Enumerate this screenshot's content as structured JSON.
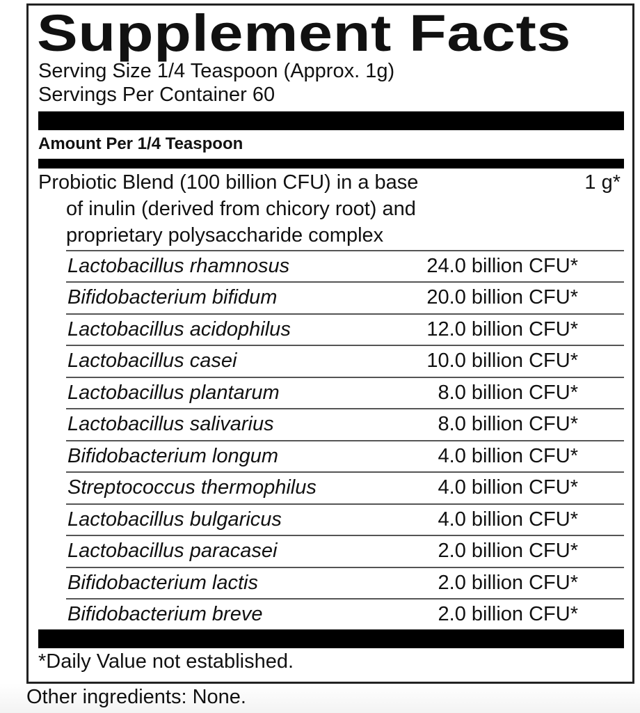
{
  "label": {
    "title": "Supplement Facts",
    "serving_size": "Serving Size 1/4 Teaspoon (Approx. 1g)",
    "servings_per_container": "Servings Per Container 60",
    "amount_header": "Amount Per 1/4 Teaspoon",
    "blend": {
      "lines": [
        "Probiotic Blend (100 billion CFU) in a base",
        "of inulin (derived from chicory root) and",
        "proprietary polysaccharide complex"
      ],
      "amount": "1 g*"
    },
    "ingredients": [
      {
        "name": "Lactobacillus rhamnosus",
        "amount": "24.0 billion CFU*"
      },
      {
        "name": "Bifidobacterium bifidum",
        "amount": "20.0 billion CFU*"
      },
      {
        "name": "Lactobacillus acidophilus",
        "amount": "12.0 billion CFU*"
      },
      {
        "name": "Lactobacillus casei",
        "amount": "10.0 billion CFU*"
      },
      {
        "name": "Lactobacillus plantarum",
        "amount": "8.0 billion CFU*"
      },
      {
        "name": "Lactobacillus salivarius",
        "amount": "8.0 billion CFU*"
      },
      {
        "name": "Bifidobacterium longum",
        "amount": "4.0 billion CFU*"
      },
      {
        "name": "Streptococcus thermophilus",
        "amount": "4.0 billion CFU*"
      },
      {
        "name": "Lactobacillus bulgaricus",
        "amount": "4.0 billion CFU*"
      },
      {
        "name": "Lactobacillus paracasei",
        "amount": "2.0 billion CFU*"
      },
      {
        "name": "Bifidobacterium lactis",
        "amount": "2.0 billion CFU*"
      },
      {
        "name": "Bifidobacterium breve",
        "amount": "2.0 billion CFU*"
      }
    ],
    "footnote": "*Daily Value not established."
  },
  "other_ingredients": "Other ingredients: None."
}
